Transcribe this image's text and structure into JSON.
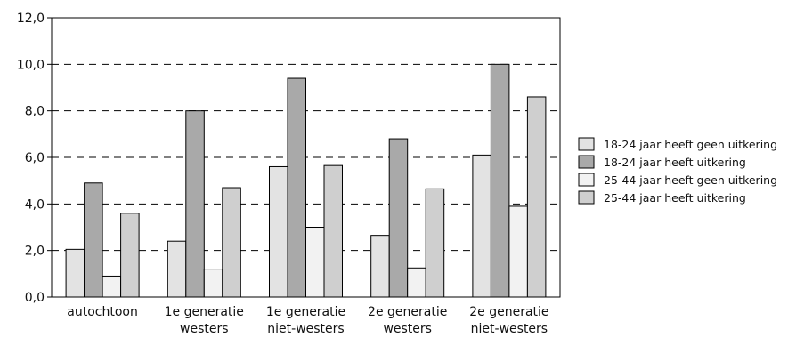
{
  "chart_data": {
    "type": "bar",
    "categories": [
      [
        "autochtoon"
      ],
      [
        "1e generatie",
        "westers"
      ],
      [
        "1e generatie",
        "niet-westers"
      ],
      [
        "2e generatie",
        "westers"
      ],
      [
        "2e generatie",
        "niet-westers"
      ]
    ],
    "series": [
      {
        "name": "18-24 jaar heeft geen uitkering",
        "color": "#e3e3e3",
        "values": [
          2.05,
          2.4,
          5.6,
          2.65,
          6.1
        ]
      },
      {
        "name": "18-24 jaar heeft uitkering",
        "color": "#a9a9a9",
        "values": [
          4.9,
          8.0,
          9.4,
          6.8,
          10.0
        ]
      },
      {
        "name": "25-44 jaar heeft geen uitkering",
        "color": "#f2f2f2",
        "values": [
          0.9,
          1.2,
          3.0,
          1.25,
          3.9
        ]
      },
      {
        "name": "25-44 jaar heeft uitkering",
        "color": "#cfcfcf",
        "values": [
          3.6,
          4.7,
          5.65,
          4.65,
          8.6
        ]
      }
    ],
    "ylim": [
      0,
      12
    ],
    "yticks": [
      0,
      2,
      4,
      6,
      8,
      10,
      12
    ],
    "ytick_labels": [
      "0,0",
      "2,0",
      "4,0",
      "6,0",
      "8,0",
      "10,0",
      "12,0"
    ],
    "gridlines": "dashed",
    "legend_position": "right",
    "title": "",
    "xlabel": "",
    "ylabel": ""
  }
}
